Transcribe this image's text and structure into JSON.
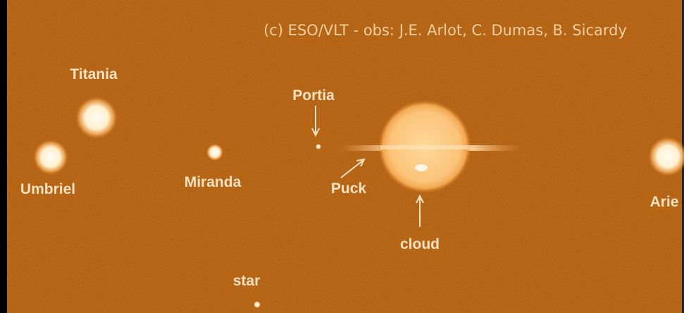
{
  "credit": "(c) ESO/VLT - obs: J.E. Arlot, C. Dumas, B. Sicardy",
  "labels": {
    "titania": "Titania",
    "portia": "Portia",
    "umbriel": "Umbriel",
    "miranda": "Miranda",
    "puck": "Puck",
    "cloud": "cloud",
    "ariel": "Arie",
    "star": "star"
  }
}
